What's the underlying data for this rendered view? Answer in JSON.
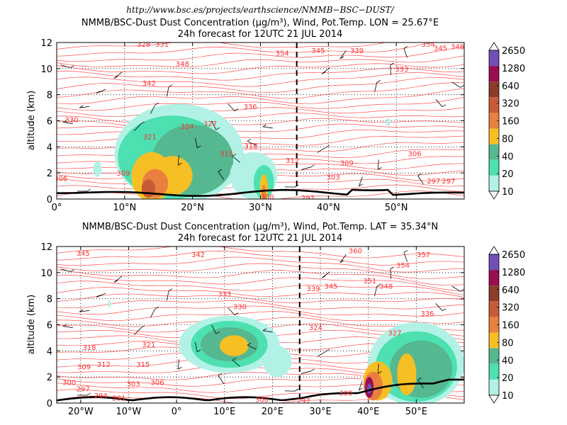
{
  "source_url": "http://www.bsc.es/projects/earthscience/NMMB−BSC−DUST/",
  "colorbar_levels": [
    "10",
    "20",
    "40",
    "80",
    "160",
    "320",
    "640",
    "1280",
    "2650"
  ],
  "colorbar_colors": [
    "#b2f2e6",
    "#4de0b0",
    "#55b890",
    "#f6bf24",
    "#ea8040",
    "#c85a38",
    "#8a3c28",
    "#9a0c54",
    "#7050b4"
  ],
  "wind_color": "#000000",
  "isentrope_color": "#ff3030",
  "chart_data": [
    {
      "type": "heatmap",
      "title_line1": "NMMB/BSC-Dust Dust Concentration (µg/m³), Wind, Pot.Temp. LON = 25.67°E",
      "title_line2": "24h forecast for 12UTC 21 JUL 2014",
      "ylabel": "altitude (km)",
      "xlim": [
        0,
        60
      ],
      "ylim": [
        0,
        12
      ],
      "xticks": [
        {
          "value": 0,
          "label": "0°"
        },
        {
          "value": 10,
          "label": "10°N"
        },
        {
          "value": 20,
          "label": "20°N"
        },
        {
          "value": 30,
          "label": "30°N"
        },
        {
          "value": 40,
          "label": "40°N"
        },
        {
          "value": 50,
          "label": "50°N"
        }
      ],
      "yticks": [
        0,
        2,
        4,
        6,
        8,
        10,
        12
      ],
      "cross_line_x": 35.34,
      "isentrope_labels": [
        {
          "x": 12.8,
          "y": 11.9,
          "text": "328"
        },
        {
          "x": 15.5,
          "y": 11.9,
          "text": "331"
        },
        {
          "x": 18.5,
          "y": 10.4,
          "text": "348"
        },
        {
          "x": 13.6,
          "y": 8.9,
          "text": "342"
        },
        {
          "x": 2.2,
          "y": 6.1,
          "text": "330"
        },
        {
          "x": 28.5,
          "y": 7.1,
          "text": "336"
        },
        {
          "x": 33.2,
          "y": 11.2,
          "text": "354"
        },
        {
          "x": 38.5,
          "y": 11.4,
          "text": "345"
        },
        {
          "x": 44.2,
          "y": 11.4,
          "text": "339"
        },
        {
          "x": 50.8,
          "y": 10.0,
          "text": "333"
        },
        {
          "x": 56.5,
          "y": 11.6,
          "text": "345"
        },
        {
          "x": 54.7,
          "y": 11.9,
          "text": "354"
        },
        {
          "x": 59.0,
          "y": 11.7,
          "text": "348"
        },
        {
          "x": 19.2,
          "y": 5.6,
          "text": "324"
        },
        {
          "x": 22.6,
          "y": 5.8,
          "text": "327"
        },
        {
          "x": 13.7,
          "y": 4.8,
          "text": "321"
        },
        {
          "x": 28.6,
          "y": 4.1,
          "text": "318"
        },
        {
          "x": 25.0,
          "y": 3.5,
          "text": "315"
        },
        {
          "x": 34.7,
          "y": 3.0,
          "text": "312"
        },
        {
          "x": 42.7,
          "y": 2.8,
          "text": "309"
        },
        {
          "x": 52.7,
          "y": 3.5,
          "text": "306"
        },
        {
          "x": 40.7,
          "y": 1.7,
          "text": "303"
        },
        {
          "x": 9.8,
          "y": 2.0,
          "text": "309"
        },
        {
          "x": 0.6,
          "y": 1.6,
          "text": "306"
        },
        {
          "x": 31.0,
          "y": 0.2,
          "text": "300"
        },
        {
          "x": 37.0,
          "y": 0.1,
          "text": "297"
        },
        {
          "x": 55.5,
          "y": 1.4,
          "text": "297"
        },
        {
          "x": 57.7,
          "y": 1.4,
          "text": "297"
        }
      ]
    },
    {
      "type": "heatmap",
      "title_line1": "NMMB/BSC-Dust Dust Concentration (µg/m³), Wind, Pot.Temp. LAT = 35.34°N",
      "title_line2": "24h forecast for 12UTC 21 JUL 2014",
      "ylabel": "altitude (km)",
      "xlim": [
        -25,
        60
      ],
      "ylim": [
        0,
        12
      ],
      "xticks": [
        {
          "value": -20,
          "label": "20°W"
        },
        {
          "value": -10,
          "label": "10°W"
        },
        {
          "value": 0,
          "label": "0°"
        },
        {
          "value": 10,
          "label": "10°E"
        },
        {
          "value": 20,
          "label": "20°E"
        },
        {
          "value": 30,
          "label": "30°E"
        },
        {
          "value": 40,
          "label": "40°E"
        },
        {
          "value": 50,
          "label": "50°E"
        }
      ],
      "yticks": [
        0,
        2,
        4,
        6,
        8,
        10,
        12
      ],
      "cross_line_x": 25.67,
      "isentrope_labels": [
        {
          "x": -19.5,
          "y": 11.5,
          "text": "345"
        },
        {
          "x": 4.5,
          "y": 11.4,
          "text": "342"
        },
        {
          "x": 37.3,
          "y": 11.7,
          "text": "360"
        },
        {
          "x": 51.5,
          "y": 11.4,
          "text": "357"
        },
        {
          "x": 47.2,
          "y": 10.6,
          "text": "354"
        },
        {
          "x": 40.3,
          "y": 9.4,
          "text": "351"
        },
        {
          "x": 43.7,
          "y": 9.0,
          "text": "348"
        },
        {
          "x": 32.2,
          "y": 9.0,
          "text": "345"
        },
        {
          "x": 28.5,
          "y": 8.8,
          "text": "339"
        },
        {
          "x": 10.0,
          "y": 8.4,
          "text": "333"
        },
        {
          "x": 13.2,
          "y": 7.4,
          "text": "330"
        },
        {
          "x": 29.0,
          "y": 5.8,
          "text": "324"
        },
        {
          "x": 52.3,
          "y": 6.9,
          "text": "336"
        },
        {
          "x": 45.5,
          "y": 5.4,
          "text": "327"
        },
        {
          "x": -5.8,
          "y": 4.5,
          "text": "321"
        },
        {
          "x": -18.2,
          "y": 4.3,
          "text": "318"
        },
        {
          "x": -15.2,
          "y": 3.0,
          "text": "312"
        },
        {
          "x": -19.3,
          "y": 2.8,
          "text": "309"
        },
        {
          "x": -7.0,
          "y": 3.0,
          "text": "315"
        },
        {
          "x": -22.4,
          "y": 1.6,
          "text": "300"
        },
        {
          "x": -4.0,
          "y": 1.6,
          "text": "306"
        },
        {
          "x": -9.0,
          "y": 1.5,
          "text": "303"
        },
        {
          "x": -19.5,
          "y": 1.1,
          "text": "297"
        },
        {
          "x": -15.8,
          "y": 0.6,
          "text": "294"
        },
        {
          "x": -12.0,
          "y": 0.4,
          "text": "291"
        },
        {
          "x": 17.8,
          "y": 0.3,
          "text": "300"
        },
        {
          "x": 26.5,
          "y": 0.2,
          "text": "297"
        },
        {
          "x": 35.3,
          "y": 0.8,
          "text": "300"
        }
      ]
    }
  ]
}
